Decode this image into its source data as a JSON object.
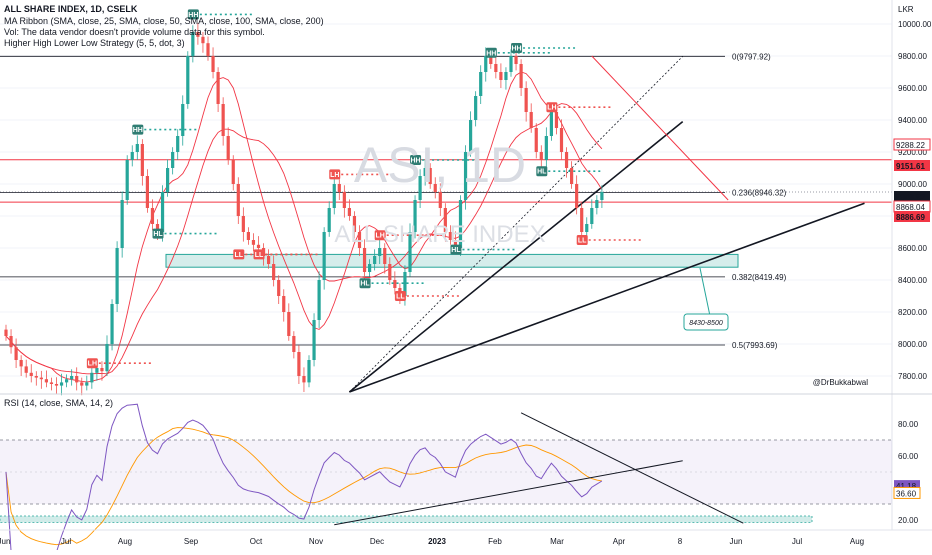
{
  "header": {
    "line1": "ALL SHARE INDEX, 1D, CSELK",
    "line2": "MA Ribbon (SMA, close, 25, SMA, close, 50, SMA, close, 100, SMA, close, 200)",
    "line3": "Vol: The data vendor doesn't provide volume data for this symbol.",
    "line4": "Higher High Lower Low Strategy (5, 5, dot, 3)"
  },
  "currency": "LKR",
  "watermark": {
    "symbol": "ASI, 1D",
    "name": "ALL SHARE INDEX"
  },
  "author": "@DrBukkabwal",
  "zone_note": "8430-8500",
  "rsi_title": "RSI (14, close, SMA, 14, 2)",
  "colors": {
    "up": "#26a69a",
    "down": "#ef5350",
    "ma_red": "#f23645",
    "rsi": "#7e57c2",
    "rsi_ma": "#ff9800",
    "zone": "#b2dfdb"
  },
  "chart_data": {
    "type": "candlestick",
    "title": "ALL SHARE INDEX, 1D, CSELK",
    "ylim": [
      7700,
      10150
    ],
    "y_ticks": [
      7800,
      8000,
      8200,
      8400,
      8600,
      8800,
      9000,
      9200,
      9400,
      9600,
      9800,
      10000
    ],
    "x_ticks": [
      "Jun",
      "Jul",
      "Aug",
      "Sep",
      "Oct",
      "Nov",
      "Dec",
      "2023",
      "Feb",
      "Mar",
      "Apr",
      "8",
      "Jun",
      "Jul",
      "Aug"
    ],
    "fib_levels": [
      {
        "ratio": "0",
        "value": 9797.92
      },
      {
        "ratio": "0.236",
        "value": 8946.32
      },
      {
        "ratio": "0.382",
        "value": 8419.49
      },
      {
        "ratio": "0.5",
        "value": 7993.69
      }
    ],
    "price_labels": [
      {
        "text": "9288.22",
        "value": 9288.22,
        "color": "#f23645",
        "style": "outline"
      },
      {
        "text": "9151.61",
        "value": 9151.61,
        "color": "#f23645",
        "style": "fill"
      },
      {
        "text": "8949.82",
        "value": 8949.82,
        "color": "#131722",
        "style": "fill"
      },
      {
        "text": "8868.04",
        "value": 8868.04,
        "color": "#f23645",
        "style": "outline"
      },
      {
        "text": "8886.69",
        "value": 8886.69,
        "color": "#f23645",
        "style": "fill"
      }
    ],
    "markers": [
      {
        "label": "LH",
        "date_idx": 17,
        "value": 7880,
        "type": "LH"
      },
      {
        "label": "HH",
        "date_idx": 26,
        "value": 9340,
        "type": "HH"
      },
      {
        "label": "HL",
        "date_idx": 30,
        "value": 8690,
        "type": "HL"
      },
      {
        "label": "HH",
        "date_idx": 37,
        "value": 10060,
        "type": "HH"
      },
      {
        "label": "LL",
        "date_idx": 46,
        "value": 8560,
        "type": "LL"
      },
      {
        "label": "LL",
        "date_idx": 50,
        "value": 8560,
        "type": "LL"
      },
      {
        "label": "LH",
        "date_idx": 65,
        "value": 9060,
        "type": "LH"
      },
      {
        "label": "HL",
        "date_idx": 71,
        "value": 8380,
        "type": "HL"
      },
      {
        "label": "LH",
        "date_idx": 74,
        "value": 8680,
        "type": "LH"
      },
      {
        "label": "LL",
        "date_idx": 78,
        "value": 8300,
        "type": "LL"
      },
      {
        "label": "HH",
        "date_idx": 81,
        "value": 9150,
        "type": "HH"
      },
      {
        "label": "HL",
        "date_idx": 89,
        "value": 8590,
        "type": "HL"
      },
      {
        "label": "HH",
        "date_idx": 96,
        "value": 9820,
        "type": "HH"
      },
      {
        "label": "HH",
        "date_idx": 101,
        "value": 9850,
        "type": "HH"
      },
      {
        "label": "HL",
        "date_idx": 106,
        "value": 9080,
        "type": "HL"
      },
      {
        "label": "LH",
        "date_idx": 108,
        "value": 9480,
        "type": "LH"
      },
      {
        "label": "LL",
        "date_idx": 114,
        "value": 8650,
        "type": "LL"
      }
    ],
    "rsi": {
      "name": "RSI (14, close, SMA, 14, 2)",
      "ylim": [
        15,
        95
      ],
      "ticks": [
        20.0,
        40.0,
        60.0,
        80.0
      ],
      "last_rsi": 41.18,
      "last_ma": 36.6,
      "bands": [
        70,
        30
      ]
    },
    "closes": [
      8050,
      7980,
      7900,
      7860,
      7820,
      7800,
      7790,
      7780,
      7760,
      7750,
      7740,
      7760,
      7780,
      7800,
      7760,
      7740,
      7760,
      7820,
      7850,
      7830,
      8000,
      8250,
      8600,
      8900,
      9150,
      9200,
      9250,
      9050,
      8850,
      8750,
      8700,
      8950,
      9100,
      9200,
      9300,
      9500,
      9800,
      9950,
      9920,
      9880,
      9800,
      9700,
      9500,
      9300,
      9150,
      9000,
      8800,
      8700,
      8650,
      8620,
      8600,
      8550,
      8500,
      8400,
      8300,
      8200,
      8050,
      7950,
      7800,
      7760,
      7900,
      8150,
      8400,
      8700,
      8850,
      9000,
      8950,
      8850,
      8800,
      8700,
      8600,
      8450,
      8500,
      8550,
      8600,
      8500,
      8400,
      8350,
      8300,
      8450,
      8700,
      8900,
      9050,
      9100,
      9000,
      8950,
      8850,
      8700,
      8650,
      8600,
      8900,
      9200,
      9400,
      9550,
      9700,
      9800,
      9750,
      9700,
      9650,
      9700,
      9800,
      9750,
      9600,
      9450,
      9350,
      9200,
      9150,
      9300,
      9450,
      9350,
      9200,
      9100,
      9000,
      8850,
      8700,
      8750,
      8850,
      8900,
      8950
    ]
  }
}
